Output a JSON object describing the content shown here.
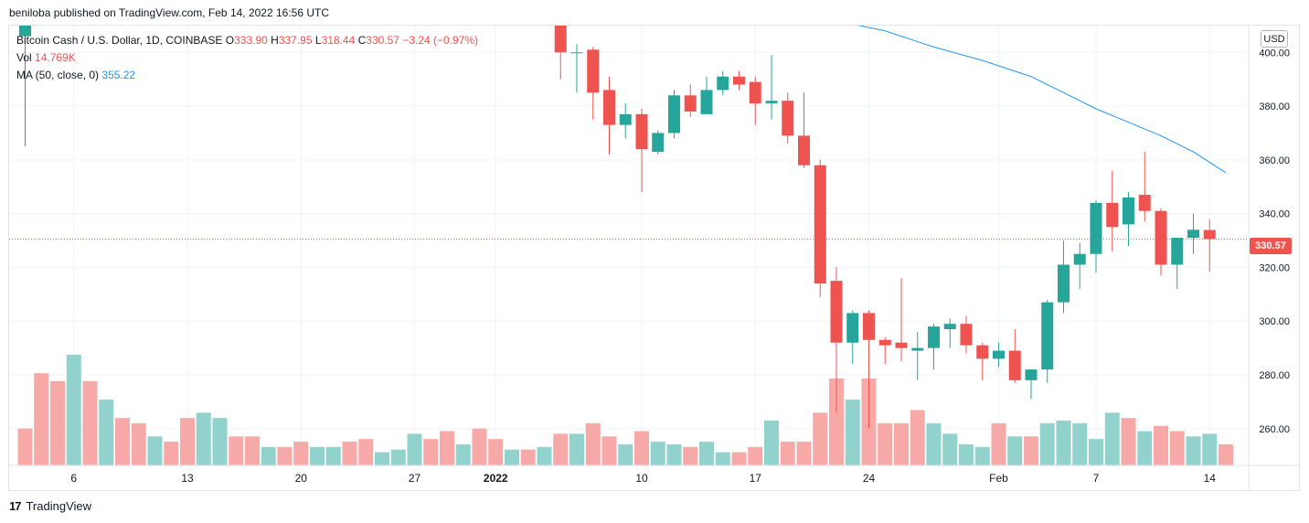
{
  "publisher_line": "beniloba published on TradingView.com, Feb 14, 2022 16:56 UTC",
  "legend": {
    "symbol": "Bitcoin Cash / U.S. Dollar, 1D, COINBASE",
    "o_key": "O",
    "o_val": "333.90",
    "h_key": "H",
    "h_val": "337.95",
    "l_key": "L",
    "l_val": "318.44",
    "c_key": "C",
    "c_val": "330.57",
    "change": "−3.24 (−0.97%)",
    "vol_label": "Vol",
    "vol_val": "14.769K",
    "ma_label": "MA (50, close, 0)",
    "ma_val": "355.22"
  },
  "currency": "USD",
  "last_price_label": "330.57",
  "footer": {
    "logo": "17",
    "brand": "TradingView"
  },
  "colors": {
    "up": "#26a69a",
    "down": "#ef5350",
    "up_vol": "#92d2cc",
    "down_vol": "#f7a9a7",
    "ma": "#2196f3"
  },
  "chart_data": {
    "type": "candlestick",
    "y_axis": {
      "ticks": [
        "400.00",
        "380.00",
        "360.00",
        "340.00",
        "320.00",
        "300.00",
        "280.00",
        "260.00"
      ],
      "ylim": [
        247,
        412
      ]
    },
    "x_axis": {
      "ticks": [
        {
          "label": "6",
          "index": 3
        },
        {
          "label": "13",
          "index": 10
        },
        {
          "label": "20",
          "index": 17
        },
        {
          "label": "27",
          "index": 24
        },
        {
          "label": "2022",
          "index": 29
        },
        {
          "label": "10",
          "index": 38
        },
        {
          "label": "17",
          "index": 45
        },
        {
          "label": "24",
          "index": 52
        },
        {
          "label": "Feb",
          "index": 60
        },
        {
          "label": "7",
          "index": 66
        },
        {
          "label": "14",
          "index": 73
        }
      ]
    },
    "candles": [
      {
        "i": 0,
        "o": 406,
        "h": 420,
        "l": 365,
        "c": 412
      },
      {
        "i": 33,
        "o": 412,
        "h": 415,
        "l": 390,
        "c": 400
      },
      {
        "i": 34,
        "o": 400,
        "h": 403,
        "l": 385,
        "c": 400
      },
      {
        "i": 35,
        "o": 401,
        "h": 402,
        "l": 375,
        "c": 385
      },
      {
        "i": 36,
        "o": 386,
        "h": 391,
        "l": 362,
        "c": 373
      },
      {
        "i": 37,
        "o": 373,
        "h": 381,
        "l": 368,
        "c": 377
      },
      {
        "i": 38,
        "o": 377,
        "h": 379,
        "l": 348,
        "c": 364
      },
      {
        "i": 39,
        "o": 363,
        "h": 371,
        "l": 362,
        "c": 370
      },
      {
        "i": 40,
        "o": 370,
        "h": 386,
        "l": 368,
        "c": 384
      },
      {
        "i": 41,
        "o": 384,
        "h": 388,
        "l": 376,
        "c": 378
      },
      {
        "i": 42,
        "o": 377,
        "h": 391,
        "l": 377,
        "c": 386
      },
      {
        "i": 43,
        "o": 386,
        "h": 393,
        "l": 384,
        "c": 391
      },
      {
        "i": 44,
        "o": 391,
        "h": 393,
        "l": 386,
        "c": 388
      },
      {
        "i": 45,
        "o": 389,
        "h": 391,
        "l": 373,
        "c": 381
      },
      {
        "i": 46,
        "o": 381,
        "h": 399,
        "l": 375,
        "c": 382
      },
      {
        "i": 47,
        "o": 382,
        "h": 385,
        "l": 366,
        "c": 369
      },
      {
        "i": 48,
        "o": 369,
        "h": 385,
        "l": 357,
        "c": 358
      },
      {
        "i": 49,
        "o": 358,
        "h": 360,
        "l": 309,
        "c": 314
      },
      {
        "i": 50,
        "o": 315,
        "h": 320,
        "l": 266,
        "c": 292
      },
      {
        "i": 51,
        "o": 292,
        "h": 304,
        "l": 284,
        "c": 303
      },
      {
        "i": 52,
        "o": 303,
        "h": 304,
        "l": 260,
        "c": 293
      },
      {
        "i": 53,
        "o": 293,
        "h": 294,
        "l": 284,
        "c": 291
      },
      {
        "i": 54,
        "o": 292,
        "h": 316,
        "l": 285,
        "c": 290
      },
      {
        "i": 55,
        "o": 289,
        "h": 296,
        "l": 278,
        "c": 290
      },
      {
        "i": 56,
        "o": 290,
        "h": 299,
        "l": 282,
        "c": 298
      },
      {
        "i": 57,
        "o": 297,
        "h": 301,
        "l": 290,
        "c": 299
      },
      {
        "i": 58,
        "o": 299,
        "h": 302,
        "l": 288,
        "c": 291
      },
      {
        "i": 59,
        "o": 291,
        "h": 292,
        "l": 278,
        "c": 286
      },
      {
        "i": 60,
        "o": 286,
        "h": 292,
        "l": 283,
        "c": 289
      },
      {
        "i": 61,
        "o": 289,
        "h": 297,
        "l": 277,
        "c": 278
      },
      {
        "i": 62,
        "o": 278,
        "h": 282,
        "l": 271,
        "c": 282
      },
      {
        "i": 63,
        "o": 282,
        "h": 308,
        "l": 277,
        "c": 307
      },
      {
        "i": 64,
        "o": 307,
        "h": 330,
        "l": 303,
        "c": 321
      },
      {
        "i": 65,
        "o": 321,
        "h": 329,
        "l": 312,
        "c": 325
      },
      {
        "i": 66,
        "o": 325,
        "h": 345,
        "l": 318,
        "c": 344
      },
      {
        "i": 67,
        "o": 344,
        "h": 356,
        "l": 326,
        "c": 335
      },
      {
        "i": 68,
        "o": 336,
        "h": 348,
        "l": 328,
        "c": 346
      },
      {
        "i": 69,
        "o": 347,
        "h": 363,
        "l": 337,
        "c": 341
      },
      {
        "i": 70,
        "o": 341,
        "h": 342,
        "l": 317,
        "c": 321
      },
      {
        "i": 71,
        "o": 321,
        "h": 331,
        "l": 312,
        "c": 331
      },
      {
        "i": 72,
        "o": 331,
        "h": 340,
        "l": 325,
        "c": 334
      },
      {
        "i": 73,
        "o": 333.9,
        "h": 337.95,
        "l": 318.44,
        "c": 330.57
      }
    ],
    "volume": [
      {
        "i": 0,
        "v": 14,
        "up": false
      },
      {
        "i": 1,
        "v": 35,
        "up": false
      },
      {
        "i": 2,
        "v": 32,
        "up": false
      },
      {
        "i": 3,
        "v": 42,
        "up": true
      },
      {
        "i": 4,
        "v": 32,
        "up": false
      },
      {
        "i": 5,
        "v": 25,
        "up": true
      },
      {
        "i": 6,
        "v": 18,
        "up": false
      },
      {
        "i": 7,
        "v": 16,
        "up": false
      },
      {
        "i": 8,
        "v": 11,
        "up": true
      },
      {
        "i": 9,
        "v": 9,
        "up": false
      },
      {
        "i": 10,
        "v": 18,
        "up": false
      },
      {
        "i": 11,
        "v": 20,
        "up": true
      },
      {
        "i": 12,
        "v": 18,
        "up": true
      },
      {
        "i": 13,
        "v": 11,
        "up": false
      },
      {
        "i": 14,
        "v": 11,
        "up": false
      },
      {
        "i": 15,
        "v": 7,
        "up": true
      },
      {
        "i": 16,
        "v": 7,
        "up": false
      },
      {
        "i": 17,
        "v": 9,
        "up": false
      },
      {
        "i": 18,
        "v": 7,
        "up": true
      },
      {
        "i": 19,
        "v": 7,
        "up": true
      },
      {
        "i": 20,
        "v": 9,
        "up": false
      },
      {
        "i": 21,
        "v": 10,
        "up": false
      },
      {
        "i": 22,
        "v": 5,
        "up": true
      },
      {
        "i": 23,
        "v": 6,
        "up": true
      },
      {
        "i": 24,
        "v": 12,
        "up": true
      },
      {
        "i": 25,
        "v": 10,
        "up": false
      },
      {
        "i": 26,
        "v": 13,
        "up": false
      },
      {
        "i": 27,
        "v": 8,
        "up": true
      },
      {
        "i": 28,
        "v": 14,
        "up": false
      },
      {
        "i": 29,
        "v": 10,
        "up": false
      },
      {
        "i": 30,
        "v": 6,
        "up": true
      },
      {
        "i": 31,
        "v": 6,
        "up": false
      },
      {
        "i": 32,
        "v": 7,
        "up": true
      },
      {
        "i": 33,
        "v": 12,
        "up": false
      },
      {
        "i": 34,
        "v": 12,
        "up": true
      },
      {
        "i": 35,
        "v": 16,
        "up": false
      },
      {
        "i": 36,
        "v": 11,
        "up": false
      },
      {
        "i": 37,
        "v": 8,
        "up": true
      },
      {
        "i": 38,
        "v": 13,
        "up": false
      },
      {
        "i": 39,
        "v": 9,
        "up": true
      },
      {
        "i": 40,
        "v": 8,
        "up": true
      },
      {
        "i": 41,
        "v": 7,
        "up": false
      },
      {
        "i": 42,
        "v": 9,
        "up": true
      },
      {
        "i": 43,
        "v": 5,
        "up": true
      },
      {
        "i": 44,
        "v": 5,
        "up": false
      },
      {
        "i": 45,
        "v": 7,
        "up": false
      },
      {
        "i": 46,
        "v": 17,
        "up": true
      },
      {
        "i": 47,
        "v": 9,
        "up": false
      },
      {
        "i": 48,
        "v": 9,
        "up": false
      },
      {
        "i": 49,
        "v": 20,
        "up": false
      },
      {
        "i": 50,
        "v": 33,
        "up": false
      },
      {
        "i": 51,
        "v": 25,
        "up": true
      },
      {
        "i": 52,
        "v": 33,
        "up": false
      },
      {
        "i": 53,
        "v": 16,
        "up": false
      },
      {
        "i": 54,
        "v": 16,
        "up": false
      },
      {
        "i": 55,
        "v": 21,
        "up": false
      },
      {
        "i": 56,
        "v": 16,
        "up": true
      },
      {
        "i": 57,
        "v": 12,
        "up": true
      },
      {
        "i": 58,
        "v": 8,
        "up": true
      },
      {
        "i": 59,
        "v": 7,
        "up": true
      },
      {
        "i": 60,
        "v": 16,
        "up": false
      },
      {
        "i": 61,
        "v": 11,
        "up": true
      },
      {
        "i": 62,
        "v": 11,
        "up": false
      },
      {
        "i": 63,
        "v": 16,
        "up": true
      },
      {
        "i": 64,
        "v": 17,
        "up": true
      },
      {
        "i": 65,
        "v": 16,
        "up": true
      },
      {
        "i": 66,
        "v": 10,
        "up": true
      },
      {
        "i": 67,
        "v": 20,
        "up": true
      },
      {
        "i": 68,
        "v": 18,
        "up": false
      },
      {
        "i": 69,
        "v": 13,
        "up": true
      },
      {
        "i": 70,
        "v": 15,
        "up": false
      },
      {
        "i": 71,
        "v": 13,
        "up": false
      },
      {
        "i": 72,
        "v": 11,
        "up": true
      },
      {
        "i": 73,
        "v": 12,
        "up": true
      },
      {
        "i": 74,
        "v": 8,
        "up": false
      }
    ],
    "ma50": [
      {
        "i": 49,
        "v": 413
      },
      {
        "i": 53,
        "v": 408
      },
      {
        "i": 56,
        "v": 402
      },
      {
        "i": 59,
        "v": 397
      },
      {
        "i": 62,
        "v": 391
      },
      {
        "i": 64,
        "v": 385
      },
      {
        "i": 66,
        "v": 379
      },
      {
        "i": 68,
        "v": 374
      },
      {
        "i": 70,
        "v": 369
      },
      {
        "i": 72,
        "v": 363
      },
      {
        "i": 74,
        "v": 355.22
      }
    ],
    "last_price": 330.57
  }
}
